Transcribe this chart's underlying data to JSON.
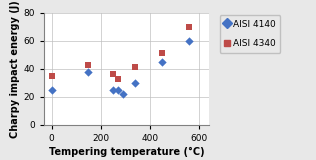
{
  "aisi4140_x": [
    0,
    150,
    250,
    270,
    290,
    340,
    450,
    560
  ],
  "aisi4140_y": [
    25,
    38,
    25,
    25,
    22,
    30,
    45,
    60
  ],
  "aisi4340_x": [
    0,
    150,
    250,
    270,
    340,
    450,
    560
  ],
  "aisi4340_y": [
    35,
    43,
    36,
    33,
    41,
    51,
    70
  ],
  "color_4140": "#4472C4",
  "color_4340": "#BE4B48",
  "xlabel": "Tempering temperature (°C)",
  "ylabel": "Charpy impact energy (J)",
  "xlim": [
    -30,
    640
  ],
  "ylim": [
    0,
    80
  ],
  "xticks": [
    0,
    200,
    400,
    600
  ],
  "yticks": [
    0,
    20,
    40,
    60,
    80
  ],
  "legend_4140": "AISI 4140",
  "legend_4340": "AISI 4340",
  "bg_color": "#E8E8E8",
  "plot_bg_color": "#FFFFFF",
  "grid_color": "#C0C0C0"
}
